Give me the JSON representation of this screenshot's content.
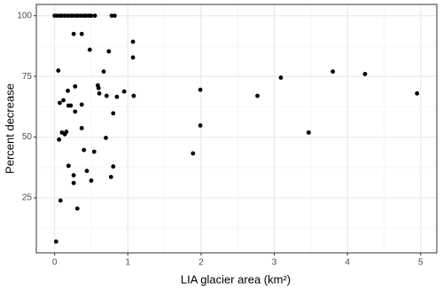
{
  "chart_data": {
    "type": "scatter",
    "x_label": "LIA glacier area (km²)",
    "y_label": "Percent decrease",
    "color": "#000000",
    "grid": true,
    "xlim": [
      -0.25,
      5.22
    ],
    "ylim": [
      2.35,
      104.65
    ],
    "xticks": [
      0,
      1,
      2,
      3,
      4,
      5
    ],
    "yticks": [
      25,
      50,
      75,
      100
    ],
    "xminor": [
      0.5,
      1.5,
      2.5,
      3.5,
      4.5
    ],
    "yminor": [
      12.5,
      37.5,
      62.5,
      87.5
    ],
    "x": [
      0.0,
      0.03,
      0.07,
      0.1,
      0.14,
      0.18,
      0.22,
      0.25,
      0.29,
      0.32,
      0.36,
      0.4,
      0.43,
      0.47,
      0.5,
      0.55,
      0.78,
      0.82,
      0.26,
      0.37,
      1.07,
      0.48,
      0.74,
      1.07,
      0.05,
      0.67,
      3.8,
      4.24,
      3.09,
      0.28,
      0.59,
      0.6,
      1.99,
      0.95,
      0.18,
      0.61,
      2.77,
      4.95,
      0.71,
      1.08,
      0.85,
      0.12,
      0.07,
      0.19,
      0.22,
      0.37,
      0.28,
      0.8,
      0.37,
      0.16,
      0.1,
      0.14,
      1.99,
      3.47,
      0.06,
      0.7,
      1.89,
      0.4,
      0.54,
      0.8,
      0.19,
      0.44,
      0.26,
      0.77,
      0.5,
      0.26,
      0.08,
      0.31,
      0.02
    ],
    "y": [
      100,
      100,
      100,
      100,
      100,
      100,
      100,
      100,
      100,
      100,
      100,
      100,
      100,
      100,
      100,
      100,
      100,
      100,
      92.5,
      92.5,
      89.3,
      86,
      85.3,
      82.8,
      77.4,
      77,
      77,
      76,
      74.5,
      70.9,
      71.3,
      70.2,
      69.5,
      68.8,
      69.1,
      68,
      67,
      68,
      67,
      67,
      66.6,
      65.2,
      64.1,
      63,
      63,
      63.4,
      60.5,
      59.8,
      53.7,
      52.2,
      51.9,
      51.2,
      54.8,
      51.9,
      49,
      49.7,
      43.3,
      44.7,
      44,
      37.9,
      38.2,
      36.1,
      34.3,
      33.6,
      32.1,
      31.1,
      23.9,
      20.6,
      7
    ]
  }
}
